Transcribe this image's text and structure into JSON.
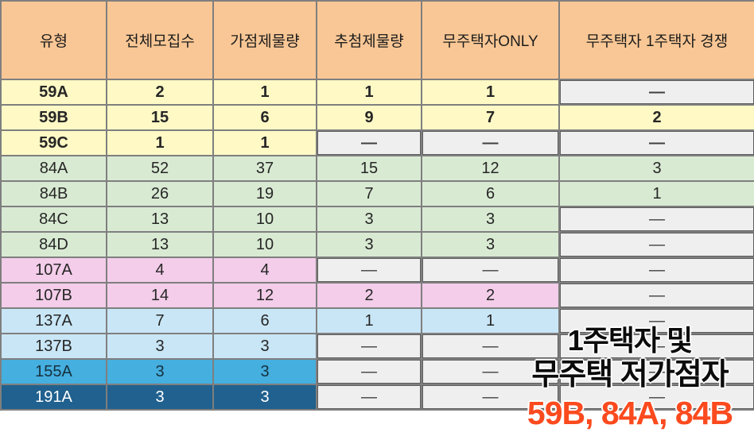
{
  "header": {
    "columns": [
      {
        "label": "유형"
      },
      {
        "label": "전체모집수"
      },
      {
        "label": "가점제물량"
      },
      {
        "label": "추첨제물량"
      },
      {
        "label": "무주택자ONLY"
      },
      {
        "label": "무주택자 1주택자 경쟁"
      }
    ]
  },
  "table": {
    "empty_marker": "—",
    "rows": [
      {
        "label": "59A",
        "group": "g59",
        "cells": [
          {
            "v": "2"
          },
          {
            "v": "1"
          },
          {
            "v": "1",
            "gray": false
          },
          {
            "v": "1",
            "gray": false
          },
          {
            "v": "—",
            "gray": true
          }
        ]
      },
      {
        "label": "59B",
        "group": "g59",
        "cells": [
          {
            "v": "15"
          },
          {
            "v": "6"
          },
          {
            "v": "9"
          },
          {
            "v": "7"
          },
          {
            "v": "2"
          }
        ]
      },
      {
        "label": "59C",
        "group": "g59",
        "cells": [
          {
            "v": "1"
          },
          {
            "v": "1"
          },
          {
            "v": "—",
            "gray": true
          },
          {
            "v": "—",
            "gray": true
          },
          {
            "v": "—",
            "gray": true
          }
        ]
      },
      {
        "label": "84A",
        "group": "g84",
        "cells": [
          {
            "v": "52"
          },
          {
            "v": "37"
          },
          {
            "v": "15"
          },
          {
            "v": "12"
          },
          {
            "v": "3"
          }
        ]
      },
      {
        "label": "84B",
        "group": "g84",
        "cells": [
          {
            "v": "26"
          },
          {
            "v": "19"
          },
          {
            "v": "7"
          },
          {
            "v": "6"
          },
          {
            "v": "1"
          }
        ]
      },
      {
        "label": "84C",
        "group": "g84",
        "cells": [
          {
            "v": "13"
          },
          {
            "v": "10"
          },
          {
            "v": "3"
          },
          {
            "v": "3"
          },
          {
            "v": "—",
            "gray": true
          }
        ]
      },
      {
        "label": "84D",
        "group": "g84",
        "cells": [
          {
            "v": "13"
          },
          {
            "v": "10"
          },
          {
            "v": "3"
          },
          {
            "v": "3"
          },
          {
            "v": "—",
            "gray": true
          }
        ]
      },
      {
        "label": "107A",
        "group": "g107",
        "cells": [
          {
            "v": "4"
          },
          {
            "v": "4"
          },
          {
            "v": "—",
            "gray": true
          },
          {
            "v": "—",
            "gray": true
          },
          {
            "v": "—",
            "gray": true
          }
        ]
      },
      {
        "label": "107B",
        "group": "g107",
        "cells": [
          {
            "v": "14"
          },
          {
            "v": "12"
          },
          {
            "v": "2"
          },
          {
            "v": "2"
          },
          {
            "v": "—",
            "gray": true
          }
        ]
      },
      {
        "label": "137A",
        "group": "g137",
        "cells": [
          {
            "v": "7"
          },
          {
            "v": "6"
          },
          {
            "v": "1"
          },
          {
            "v": "1"
          },
          {
            "v": "—",
            "gray": true
          }
        ]
      },
      {
        "label": "137B",
        "group": "g137",
        "cells": [
          {
            "v": "3"
          },
          {
            "v": "3"
          },
          {
            "v": "—",
            "gray": true
          },
          {
            "v": "—",
            "gray": true
          },
          {
            "v": "—",
            "gray": true
          }
        ]
      },
      {
        "label": "155A",
        "group": "g155",
        "cells": [
          {
            "v": "3"
          },
          {
            "v": "3"
          },
          {
            "v": "—",
            "gray": true
          },
          {
            "v": "—",
            "gray": true
          },
          {
            "v": "—",
            "gray": true
          }
        ]
      },
      {
        "label": "191A",
        "group": "g191",
        "cells": [
          {
            "v": "3"
          },
          {
            "v": "3"
          },
          {
            "v": "—",
            "gray": true
          },
          {
            "v": "—",
            "gray": true
          },
          {
            "v": "—",
            "gray": true
          }
        ]
      }
    ]
  },
  "annotation": {
    "line1": "1주택자 및",
    "line2": "무주택 저가점자",
    "line3": "59B, 84A, 84B",
    "highlight_color": "#fb4a1e"
  },
  "colors": {
    "header_bg": "#f9c795",
    "group_59_bg": "#fef9c5",
    "group_84_bg": "#d9ead3",
    "group_107_bg": "#f3cde9",
    "group_137_bg": "#c9e6f6",
    "group_155_bg": "#45afdf",
    "group_191_bg": "#20618f",
    "empty_cell_bg": "#efefef",
    "border": "#7f7f7f"
  }
}
